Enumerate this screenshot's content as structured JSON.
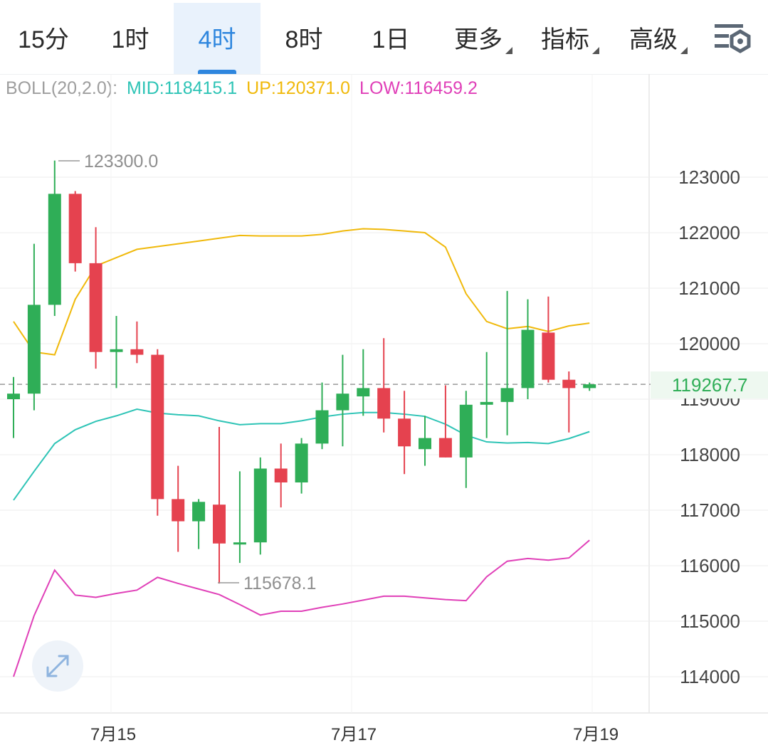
{
  "tabs": [
    {
      "label": "15分",
      "active": false
    },
    {
      "label": "1时",
      "active": false
    },
    {
      "label": "4时",
      "active": true
    },
    {
      "label": "8时",
      "active": false
    },
    {
      "label": "1日",
      "active": false
    }
  ],
  "dropdowns": [
    "更多",
    "指标",
    "高级"
  ],
  "settings_icon": "chart-settings-icon",
  "indicator": {
    "name": "BOLL(20,2.0):",
    "mid": "MID:118415.1",
    "up": "UP:120371.0",
    "low": "LOW:116459.2",
    "colors": {
      "name": "#9e9e9e",
      "mid": "#2ec4b6",
      "up": "#f0b90b",
      "low": "#e040b8"
    }
  },
  "current_price": "119267.7",
  "high_label": "123300.0",
  "low_label": "115678.1",
  "dates": [
    "7月15",
    "7月17",
    "7月19"
  ],
  "colors": {
    "up": "#2fae57",
    "down": "#e5424f",
    "grid": "#eeeeee"
  },
  "chart_data": {
    "type": "candlestick",
    "y_ticks": [
      123000,
      122000,
      121000,
      120000,
      119000,
      118000,
      117000,
      116000,
      115000,
      114000
    ],
    "ylim": [
      113300,
      124500
    ],
    "candles": [
      {
        "o": 119000,
        "c": 119100,
        "h": 119400,
        "l": 118300
      },
      {
        "o": 119100,
        "c": 120700,
        "h": 121800,
        "l": 118800
      },
      {
        "o": 120700,
        "c": 122700,
        "h": 123300,
        "l": 120500
      },
      {
        "o": 122700,
        "c": 121450,
        "h": 122750,
        "l": 121300
      },
      {
        "o": 121450,
        "c": 119850,
        "h": 122100,
        "l": 119550
      },
      {
        "o": 119850,
        "c": 119900,
        "h": 120500,
        "l": 119200
      },
      {
        "o": 119900,
        "c": 119800,
        "h": 120400,
        "l": 119650
      },
      {
        "o": 119800,
        "c": 117200,
        "h": 119900,
        "l": 116900
      },
      {
        "o": 117200,
        "c": 116800,
        "h": 117800,
        "l": 116250
      },
      {
        "o": 116800,
        "c": 117150,
        "h": 117200,
        "l": 116300
      },
      {
        "o": 117100,
        "c": 116400,
        "h": 118500,
        "l": 115678.1
      },
      {
        "o": 116400,
        "c": 116420,
        "h": 117700,
        "l": 116050
      },
      {
        "o": 116420,
        "c": 117750,
        "h": 117950,
        "l": 116200
      },
      {
        "o": 117750,
        "c": 117500,
        "h": 118200,
        "l": 117050
      },
      {
        "o": 117500,
        "c": 118200,
        "h": 118300,
        "l": 117300
      },
      {
        "o": 118200,
        "c": 118800,
        "h": 119300,
        "l": 118100
      },
      {
        "o": 118800,
        "c": 119100,
        "h": 119800,
        "l": 118150
      },
      {
        "o": 119050,
        "c": 119200,
        "h": 119900,
        "l": 118700
      },
      {
        "o": 119200,
        "c": 118650,
        "h": 120100,
        "l": 118400
      },
      {
        "o": 118650,
        "c": 118150,
        "h": 119150,
        "l": 117650
      },
      {
        "o": 118100,
        "c": 118300,
        "h": 118700,
        "l": 117800
      },
      {
        "o": 118300,
        "c": 117950,
        "h": 119250,
        "l": 117950
      },
      {
        "o": 117950,
        "c": 118900,
        "h": 119150,
        "l": 117400
      },
      {
        "o": 118900,
        "c": 118950,
        "h": 119850,
        "l": 118300
      },
      {
        "o": 118950,
        "c": 119200,
        "h": 120950,
        "l": 118350
      },
      {
        "o": 119200,
        "c": 120250,
        "h": 120800,
        "l": 119000
      },
      {
        "o": 120200,
        "c": 119350,
        "h": 120850,
        "l": 119300
      },
      {
        "o": 119350,
        "c": 119200,
        "h": 119500,
        "l": 118400
      },
      {
        "o": 119200,
        "c": 119267.7,
        "h": 119300,
        "l": 119150
      }
    ],
    "boll_up": [
      120400,
      119850,
      119800,
      120800,
      121400,
      121550,
      121700,
      121750,
      121800,
      121850,
      121900,
      121950,
      121940,
      121940,
      121940,
      121970,
      122030,
      122070,
      122060,
      122030,
      122000,
      121740,
      120900,
      120400,
      120270,
      120310,
      120220,
      120320,
      120370
    ],
    "boll_mid": [
      117180,
      117700,
      118200,
      118450,
      118600,
      118700,
      118820,
      118750,
      118720,
      118700,
      118610,
      118540,
      118560,
      118560,
      118610,
      118680,
      118730,
      118760,
      118760,
      118730,
      118690,
      118550,
      118350,
      118230,
      118210,
      118220,
      118200,
      118290,
      118415.1
    ],
    "boll_low": [
      114000,
      115100,
      115920,
      115470,
      115430,
      115500,
      115560,
      115790,
      115680,
      115580,
      115480,
      115300,
      115110,
      115180,
      115180,
      115250,
      115310,
      115380,
      115450,
      115450,
      115420,
      115390,
      115370,
      115800,
      116080,
      116130,
      116100,
      116140,
      116459.2
    ]
  }
}
